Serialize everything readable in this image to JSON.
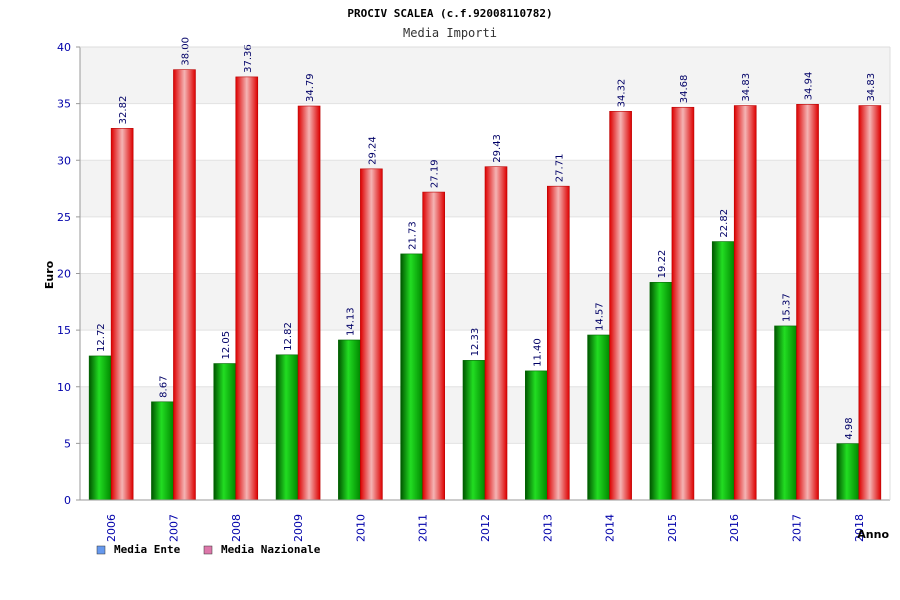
{
  "chart_data": {
    "type": "bar",
    "title": "PROCIV SCALEA (c.f.92008110782)",
    "subtitle": "Media Importi",
    "xlabel": "Anno",
    "ylabel": "Euro",
    "ylim": [
      0,
      40
    ],
    "yticks": [
      0,
      5,
      10,
      15,
      20,
      25,
      30,
      35,
      40
    ],
    "grid": true,
    "legend_position": "bottom-left",
    "categories": [
      "2006",
      "2007",
      "2008",
      "2009",
      "2010",
      "2011",
      "2012",
      "2013",
      "2014",
      "2015",
      "2016",
      "2017",
      "2018"
    ],
    "series": [
      {
        "name": "Media Ente",
        "color": "#00b000",
        "legend_color": "#6699ee",
        "values": [
          12.72,
          8.67,
          12.05,
          12.82,
          14.13,
          21.73,
          12.33,
          11.4,
          14.57,
          19.22,
          22.82,
          15.37,
          4.98
        ],
        "labels": [
          "12.72",
          "8.67",
          "12.05",
          "12.82",
          "14.13",
          "21.73",
          "12.33",
          "11.40",
          "14.57",
          "19.22",
          "22.82",
          "15.37",
          "4.98"
        ]
      },
      {
        "name": "Media Nazionale",
        "color": "#ee1111",
        "legend_color": "#dd77aa",
        "values": [
          32.82,
          38.0,
          37.36,
          34.79,
          29.24,
          27.19,
          29.43,
          27.71,
          34.32,
          34.68,
          34.83,
          34.94,
          34.83
        ],
        "labels": [
          "32.82",
          "38.00",
          "37.36",
          "34.79",
          "29.24",
          "27.19",
          "29.43",
          "27.71",
          "34.32",
          "34.68",
          "34.83",
          "34.94",
          "34.83"
        ]
      }
    ]
  }
}
